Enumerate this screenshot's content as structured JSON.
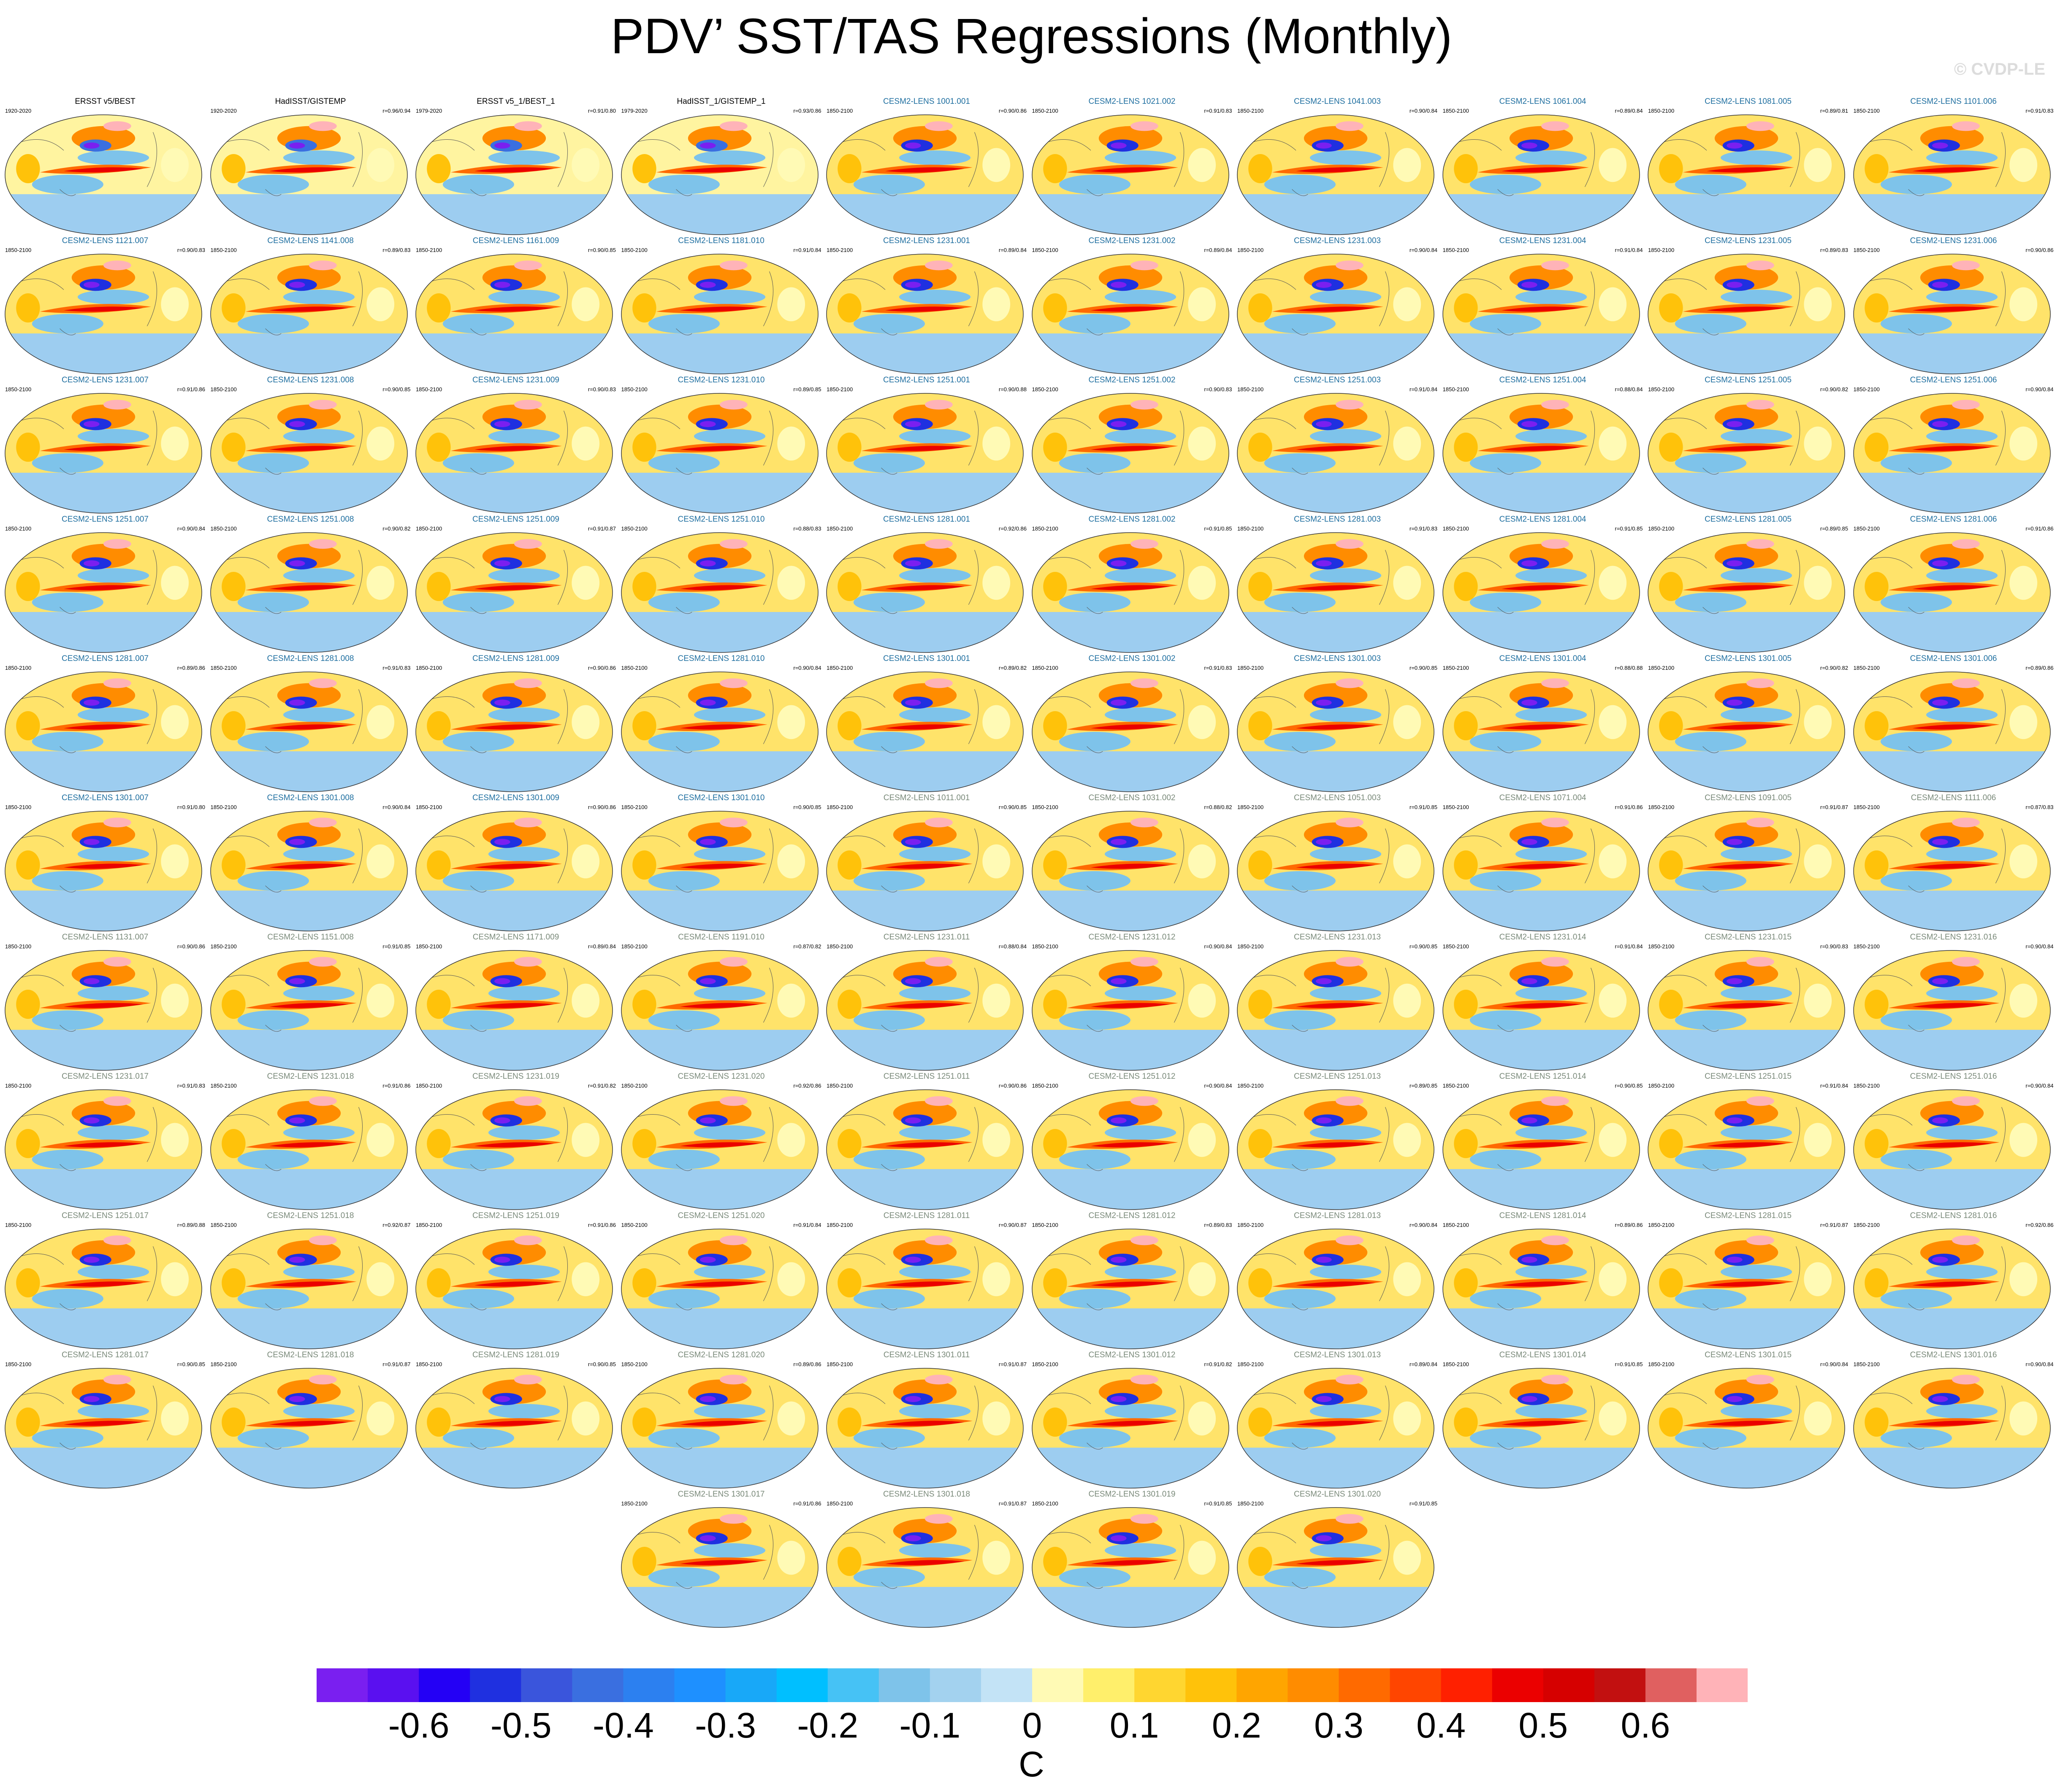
{
  "title": "PDV’ SST/TAS Regressions (Monthly)",
  "watermark": "© CVDP-LE",
  "colorbar": {
    "units": "C",
    "tick_labels": [
      "-0.6",
      "-0.5",
      "-0.4",
      "-0.3",
      "-0.2",
      "-0.1",
      "0",
      "0.1",
      "0.2",
      "0.3",
      "0.4",
      "0.5",
      "0.6"
    ],
    "colors": [
      "#7a1ff0",
      "#5a10f0",
      "#2400f5",
      "#1f30e0",
      "#3a55dc",
      "#3a6fe0",
      "#2c80f0",
      "#1e90ff",
      "#18a8f8",
      "#00bfff",
      "#46c2f5",
      "#7ec3ea",
      "#a3d2ef",
      "#c3e3f6",
      "#fffab5",
      "#ffef6b",
      "#ffd630",
      "#ffc20a",
      "#ffa500",
      "#ff8c00",
      "#ff6a00",
      "#ff4500",
      "#ff2000",
      "#eb0000",
      "#d60000",
      "#c21010",
      "#e06060",
      "#ffb3b8"
    ]
  },
  "panels": [
    {
      "name": "ERSST v5/BEST",
      "period": "1920-2020",
      "corr": "",
      "obs": true
    },
    {
      "name": "HadISST/GISTEMP",
      "period": "1920-2020",
      "corr": "r=0.96/0.94",
      "obs": true
    },
    {
      "name": "ERSST v5_1/BEST_1",
      "period": "1979-2020",
      "corr": "r=0.91/0.80",
      "obs": true
    },
    {
      "name": "HadISST_1/GISTEMP_1",
      "period": "1979-2020",
      "corr": "r=0.93/0.86",
      "obs": true
    },
    {
      "name": "CESM2-LENS 1001.001",
      "period": "1850-2100",
      "corr": "r=0.90/0.86"
    },
    {
      "name": "CESM2-LENS 1021.002",
      "period": "1850-2100",
      "corr": "r=0.91/0.83"
    },
    {
      "name": "CESM2-LENS 1041.003",
      "period": "1850-2100",
      "corr": "r=0.90/0.84"
    },
    {
      "name": "CESM2-LENS 1061.004",
      "period": "1850-2100",
      "corr": "r=0.89/0.84"
    },
    {
      "name": "CESM2-LENS 1081.005",
      "period": "1850-2100",
      "corr": "r=0.89/0.81"
    },
    {
      "name": "CESM2-LENS 1101.006",
      "period": "1850-2100",
      "corr": "r=0.91/0.83"
    },
    {
      "name": "CESM2-LENS 1121.007",
      "period": "1850-2100",
      "corr": "r=0.90/0.83"
    },
    {
      "name": "CESM2-LENS 1141.008",
      "period": "1850-2100",
      "corr": "r=0.89/0.83"
    },
    {
      "name": "CESM2-LENS 1161.009",
      "period": "1850-2100",
      "corr": "r=0.90/0.85"
    },
    {
      "name": "CESM2-LENS 1181.010",
      "period": "1850-2100",
      "corr": "r=0.91/0.84"
    },
    {
      "name": "CESM2-LENS 1231.001",
      "period": "1850-2100",
      "corr": "r=0.89/0.84"
    },
    {
      "name": "CESM2-LENS 1231.002",
      "period": "1850-2100",
      "corr": "r=0.89/0.84"
    },
    {
      "name": "CESM2-LENS 1231.003",
      "period": "1850-2100",
      "corr": "r=0.90/0.84"
    },
    {
      "name": "CESM2-LENS 1231.004",
      "period": "1850-2100",
      "corr": "r=0.91/0.84"
    },
    {
      "name": "CESM2-LENS 1231.005",
      "period": "1850-2100",
      "corr": "r=0.89/0.83"
    },
    {
      "name": "CESM2-LENS 1231.006",
      "period": "1850-2100",
      "corr": "r=0.90/0.86"
    },
    {
      "name": "CESM2-LENS 1231.007",
      "period": "1850-2100",
      "corr": "r=0.91/0.86"
    },
    {
      "name": "CESM2-LENS 1231.008",
      "period": "1850-2100",
      "corr": "r=0.90/0.85"
    },
    {
      "name": "CESM2-LENS 1231.009",
      "period": "1850-2100",
      "corr": "r=0.90/0.83"
    },
    {
      "name": "CESM2-LENS 1231.010",
      "period": "1850-2100",
      "corr": "r=0.89/0.85"
    },
    {
      "name": "CESM2-LENS 1251.001",
      "period": "1850-2100",
      "corr": "r=0.90/0.88"
    },
    {
      "name": "CESM2-LENS 1251.002",
      "period": "1850-2100",
      "corr": "r=0.90/0.83"
    },
    {
      "name": "CESM2-LENS 1251.003",
      "period": "1850-2100",
      "corr": "r=0.91/0.84"
    },
    {
      "name": "CESM2-LENS 1251.004",
      "period": "1850-2100",
      "corr": "r=0.88/0.84"
    },
    {
      "name": "CESM2-LENS 1251.005",
      "period": "1850-2100",
      "corr": "r=0.90/0.82"
    },
    {
      "name": "CESM2-LENS 1251.006",
      "period": "1850-2100",
      "corr": "r=0.90/0.84"
    },
    {
      "name": "CESM2-LENS 1251.007",
      "period": "1850-2100",
      "corr": "r=0.90/0.84"
    },
    {
      "name": "CESM2-LENS 1251.008",
      "period": "1850-2100",
      "corr": "r=0.90/0.82"
    },
    {
      "name": "CESM2-LENS 1251.009",
      "period": "1850-2100",
      "corr": "r=0.91/0.87"
    },
    {
      "name": "CESM2-LENS 1251.010",
      "period": "1850-2100",
      "corr": "r=0.88/0.83"
    },
    {
      "name": "CESM2-LENS 1281.001",
      "period": "1850-2100",
      "corr": "r=0.92/0.86"
    },
    {
      "name": "CESM2-LENS 1281.002",
      "period": "1850-2100",
      "corr": "r=0.91/0.85"
    },
    {
      "name": "CESM2-LENS 1281.003",
      "period": "1850-2100",
      "corr": "r=0.91/0.83"
    },
    {
      "name": "CESM2-LENS 1281.004",
      "period": "1850-2100",
      "corr": "r=0.91/0.85"
    },
    {
      "name": "CESM2-LENS 1281.005",
      "period": "1850-2100",
      "corr": "r=0.89/0.85"
    },
    {
      "name": "CESM2-LENS 1281.006",
      "period": "1850-2100",
      "corr": "r=0.91/0.86"
    },
    {
      "name": "CESM2-LENS 1281.007",
      "period": "1850-2100",
      "corr": "r=0.89/0.86"
    },
    {
      "name": "CESM2-LENS 1281.008",
      "period": "1850-2100",
      "corr": "r=0.91/0.83"
    },
    {
      "name": "CESM2-LENS 1281.009",
      "period": "1850-2100",
      "corr": "r=0.90/0.86"
    },
    {
      "name": "CESM2-LENS 1281.010",
      "period": "1850-2100",
      "corr": "r=0.90/0.84"
    },
    {
      "name": "CESM2-LENS 1301.001",
      "period": "1850-2100",
      "corr": "r=0.89/0.82"
    },
    {
      "name": "CESM2-LENS 1301.002",
      "period": "1850-2100",
      "corr": "r=0.91/0.83"
    },
    {
      "name": "CESM2-LENS 1301.003",
      "period": "1850-2100",
      "corr": "r=0.90/0.85"
    },
    {
      "name": "CESM2-LENS 1301.004",
      "period": "1850-2100",
      "corr": "r=0.88/0.88"
    },
    {
      "name": "CESM2-LENS 1301.005",
      "period": "1850-2100",
      "corr": "r=0.90/0.82"
    },
    {
      "name": "CESM2-LENS 1301.006",
      "period": "1850-2100",
      "corr": "r=0.89/0.86"
    },
    {
      "name": "CESM2-LENS 1301.007",
      "period": "1850-2100",
      "corr": "r=0.91/0.80"
    },
    {
      "name": "CESM2-LENS 1301.008",
      "period": "1850-2100",
      "corr": "r=0.90/0.84"
    },
    {
      "name": "CESM2-LENS 1301.009",
      "period": "1850-2100",
      "corr": "r=0.90/0.86"
    },
    {
      "name": "CESM2-LENS 1301.010",
      "period": "1850-2100",
      "corr": "r=0.90/0.85"
    },
    {
      "name": "CESM2-LENS 1011.001",
      "period": "1850-2100",
      "corr": "r=0.90/0.85"
    },
    {
      "name": "CESM2-LENS 1031.002",
      "period": "1850-2100",
      "corr": "r=0.88/0.82"
    },
    {
      "name": "CESM2-LENS 1051.003",
      "period": "1850-2100",
      "corr": "r=0.91/0.85"
    },
    {
      "name": "CESM2-LENS 1071.004",
      "period": "1850-2100",
      "corr": "r=0.91/0.86"
    },
    {
      "name": "CESM2-LENS 1091.005",
      "period": "1850-2100",
      "corr": "r=0.91/0.87"
    },
    {
      "name": "CESM2-LENS 1111.006",
      "period": "1850-2100",
      "corr": "r=0.87/0.83"
    },
    {
      "name": "CESM2-LENS 1131.007",
      "period": "1850-2100",
      "corr": "r=0.90/0.86"
    },
    {
      "name": "CESM2-LENS 1151.008",
      "period": "1850-2100",
      "corr": "r=0.91/0.85"
    },
    {
      "name": "CESM2-LENS 1171.009",
      "period": "1850-2100",
      "corr": "r=0.89/0.84"
    },
    {
      "name": "CESM2-LENS 1191.010",
      "period": "1850-2100",
      "corr": "r=0.87/0.82"
    },
    {
      "name": "CESM2-LENS 1231.011",
      "period": "1850-2100",
      "corr": "r=0.88/0.84"
    },
    {
      "name": "CESM2-LENS 1231.012",
      "period": "1850-2100",
      "corr": "r=0.90/0.84"
    },
    {
      "name": "CESM2-LENS 1231.013",
      "period": "1850-2100",
      "corr": "r=0.90/0.85"
    },
    {
      "name": "CESM2-LENS 1231.014",
      "period": "1850-2100",
      "corr": "r=0.91/0.84"
    },
    {
      "name": "CESM2-LENS 1231.015",
      "period": "1850-2100",
      "corr": "r=0.90/0.83"
    },
    {
      "name": "CESM2-LENS 1231.016",
      "period": "1850-2100",
      "corr": "r=0.90/0.84"
    },
    {
      "name": "CESM2-LENS 1231.017",
      "period": "1850-2100",
      "corr": "r=0.91/0.83"
    },
    {
      "name": "CESM2-LENS 1231.018",
      "period": "1850-2100",
      "corr": "r=0.91/0.86"
    },
    {
      "name": "CESM2-LENS 1231.019",
      "period": "1850-2100",
      "corr": "r=0.91/0.82"
    },
    {
      "name": "CESM2-LENS 1231.020",
      "period": "1850-2100",
      "corr": "r=0.92/0.86"
    },
    {
      "name": "CESM2-LENS 1251.011",
      "period": "1850-2100",
      "corr": "r=0.90/0.86"
    },
    {
      "name": "CESM2-LENS 1251.012",
      "period": "1850-2100",
      "corr": "r=0.90/0.84"
    },
    {
      "name": "CESM2-LENS 1251.013",
      "period": "1850-2100",
      "corr": "r=0.89/0.85"
    },
    {
      "name": "CESM2-LENS 1251.014",
      "period": "1850-2100",
      "corr": "r=0.90/0.85"
    },
    {
      "name": "CESM2-LENS 1251.015",
      "period": "1850-2100",
      "corr": "r=0.91/0.84"
    },
    {
      "name": "CESM2-LENS 1251.016",
      "period": "1850-2100",
      "corr": "r=0.90/0.84"
    },
    {
      "name": "CESM2-LENS 1251.017",
      "period": "1850-2100",
      "corr": "r=0.89/0.88"
    },
    {
      "name": "CESM2-LENS 1251.018",
      "period": "1850-2100",
      "corr": "r=0.92/0.87"
    },
    {
      "name": "CESM2-LENS 1251.019",
      "period": "1850-2100",
      "corr": "r=0.91/0.86"
    },
    {
      "name": "CESM2-LENS 1251.020",
      "period": "1850-2100",
      "corr": "r=0.91/0.84"
    },
    {
      "name": "CESM2-LENS 1281.011",
      "period": "1850-2100",
      "corr": "r=0.90/0.87"
    },
    {
      "name": "CESM2-LENS 1281.012",
      "period": "1850-2100",
      "corr": "r=0.89/0.83"
    },
    {
      "name": "CESM2-LENS 1281.013",
      "period": "1850-2100",
      "corr": "r=0.90/0.84"
    },
    {
      "name": "CESM2-LENS 1281.014",
      "period": "1850-2100",
      "corr": "r=0.89/0.86"
    },
    {
      "name": "CESM2-LENS 1281.015",
      "period": "1850-2100",
      "corr": "r=0.91/0.87"
    },
    {
      "name": "CESM2-LENS 1281.016",
      "period": "1850-2100",
      "corr": "r=0.92/0.86"
    },
    {
      "name": "CESM2-LENS 1281.017",
      "period": "1850-2100",
      "corr": "r=0.90/0.85"
    },
    {
      "name": "CESM2-LENS 1281.018",
      "period": "1850-2100",
      "corr": "r=0.91/0.87"
    },
    {
      "name": "CESM2-LENS 1281.019",
      "period": "1850-2100",
      "corr": "r=0.90/0.85"
    },
    {
      "name": "CESM2-LENS 1281.020",
      "period": "1850-2100",
      "corr": "r=0.89/0.86"
    },
    {
      "name": "CESM2-LENS 1301.011",
      "period": "1850-2100",
      "corr": "r=0.91/0.87"
    },
    {
      "name": "CESM2-LENS 1301.012",
      "period": "1850-2100",
      "corr": "r=0.91/0.82"
    },
    {
      "name": "CESM2-LENS 1301.013",
      "period": "1850-2100",
      "corr": "r=0.89/0.84"
    },
    {
      "name": "CESM2-LENS 1301.014",
      "period": "1850-2100",
      "corr": "r=0.91/0.85"
    },
    {
      "name": "CESM2-LENS 1301.015",
      "period": "1850-2100",
      "corr": "r=0.90/0.84"
    },
    {
      "name": "CESM2-LENS 1301.016",
      "period": "1850-2100",
      "corr": "r=0.90/0.84"
    },
    {
      "name": "CESM2-LENS 1301.017",
      "period": "1850-2100",
      "corr": "r=0.91/0.86"
    },
    {
      "name": "CESM2-LENS 1301.018",
      "period": "1850-2100",
      "corr": "r=0.91/0.87"
    },
    {
      "name": "CESM2-LENS 1301.019",
      "period": "1850-2100",
      "corr": "r=0.91/0.85"
    },
    {
      "name": "CESM2-LENS 1301.020",
      "period": "1850-2100",
      "corr": "r=0.91/0.85"
    }
  ]
}
